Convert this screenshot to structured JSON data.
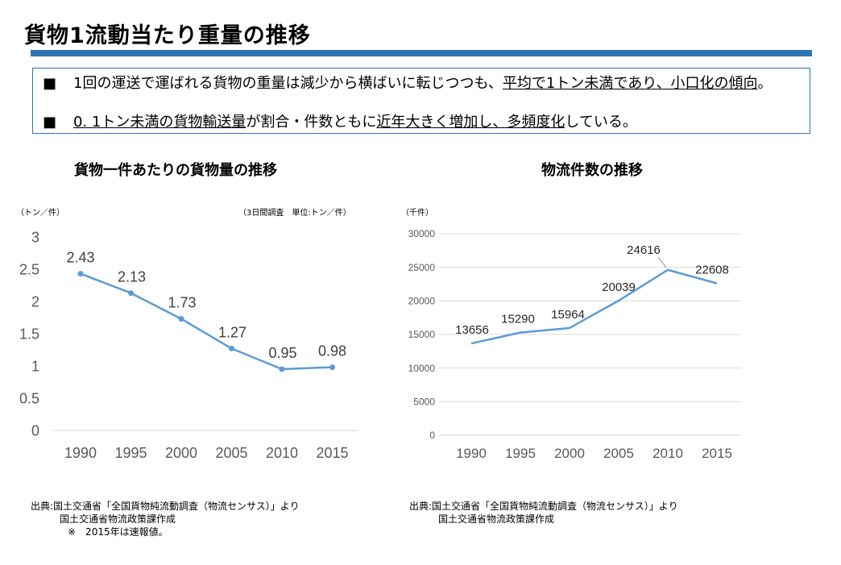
{
  "page": {
    "title": "貨物1流動当たり重量の推移",
    "bullets": [
      {
        "pre": "1回の運送で運ばれる貨物の重量は減少から横ばいに転じつつも、",
        "underline": "平均で1トン未満であり、小口化の傾向",
        "post": "。"
      },
      {
        "pre": "0. 1トン未満の貨物輸送量",
        "mid": "が割合・件数ともに",
        "underline2": "近年大きく増加し、多頻度化",
        "post": "している。"
      }
    ],
    "bullet_marker": "■"
  },
  "chart_data": [
    {
      "type": "line",
      "title": "貨物一件あたりの貨物量の推移",
      "unit_label": "（トン／件）",
      "note": "（3日間調査　単位:トン／件）",
      "categories": [
        "1990",
        "1995",
        "2000",
        "2005",
        "2010",
        "2015"
      ],
      "values": [
        2.43,
        2.13,
        1.73,
        1.27,
        0.95,
        0.98
      ],
      "value_labels": [
        "2.43",
        "2.13",
        "1.73",
        "1.27",
        "0.95",
        "0.98"
      ],
      "ylim": [
        0,
        3
      ],
      "yticks": [
        "0",
        "0.5",
        "1",
        "1.5",
        "2",
        "2.5",
        "3"
      ],
      "ytick_values": [
        0,
        0.5,
        1,
        1.5,
        2,
        2.5,
        3
      ],
      "color": "#5b9bd5",
      "source": [
        "出典:国土交通省「全国貨物純流動調査（物流センサス）」より",
        "国土交通省物流政策課作成",
        "※　2015年は速報値。"
      ]
    },
    {
      "type": "line",
      "title": "物流件数の推移",
      "unit_label": "（千件）",
      "categories": [
        "1990",
        "1995",
        "2000",
        "2005",
        "2010",
        "2015"
      ],
      "values": [
        13656,
        15290,
        15964,
        20039,
        24616,
        22608
      ],
      "value_labels": [
        "13656",
        "15290",
        "15964",
        "20039",
        "24616",
        "22608"
      ],
      "ylim": [
        0,
        30000
      ],
      "yticks": [
        "0",
        "5000",
        "10000",
        "15000",
        "20000",
        "25000",
        "30000"
      ],
      "ytick_values": [
        0,
        5000,
        10000,
        15000,
        20000,
        25000,
        30000
      ],
      "color": "#5b9bd5",
      "source": [
        "出典:国土交通省「全国貨物純流動調査（物流センサス）」より",
        "国土交通省物流政策課作成"
      ]
    }
  ]
}
